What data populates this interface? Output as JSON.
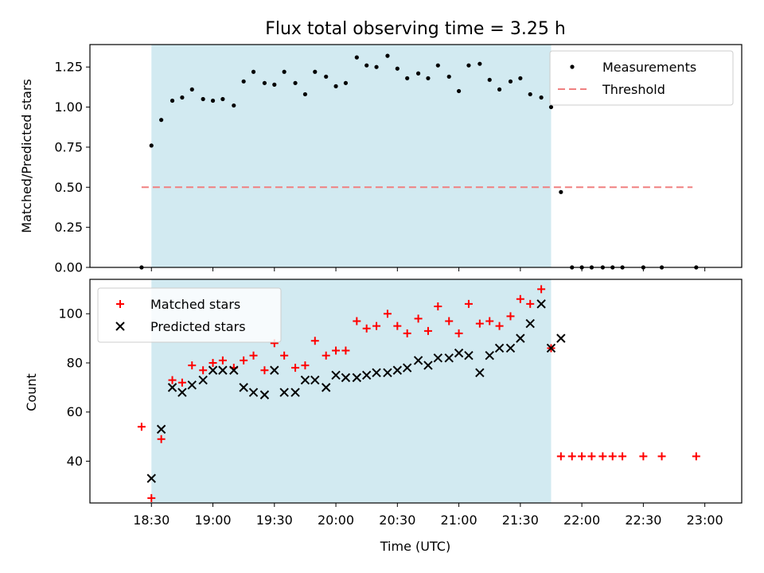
{
  "title": "Flux total observing time = 3.25 h",
  "x_ticks": [
    "18:30",
    "19:00",
    "19:30",
    "20:00",
    "20:30",
    "21:00",
    "21:30",
    "22:00",
    "22:30",
    "23:00"
  ],
  "colors": {
    "measurements": "#000000",
    "threshold": "#f08080",
    "matched": "#ff0000",
    "predicted": "#000000",
    "shade": "#add8e6"
  },
  "chart_data": [
    {
      "type": "scatter",
      "title": "Flux total observing time = 3.25 h",
      "xlabel": "",
      "ylabel": "Matched/Predicted stars",
      "x_unit": "time (UTC), decimal hours",
      "xlim": [
        18.0,
        23.3
      ],
      "ylim": [
        0.0,
        1.39
      ],
      "y_ticks": [
        "0.00",
        "0.25",
        "0.50",
        "0.75",
        "1.00",
        "1.25"
      ],
      "legend_position": "upper right",
      "grid": false,
      "shaded_x_range": [
        18.5,
        21.75
      ],
      "series": [
        {
          "name": "Measurements",
          "marker": "dot",
          "x": [
            18.42,
            18.5,
            18.58,
            18.67,
            18.75,
            18.83,
            18.92,
            19.0,
            19.08,
            19.17,
            19.25,
            19.33,
            19.42,
            19.5,
            19.58,
            19.67,
            19.75,
            19.83,
            19.92,
            20.0,
            20.08,
            20.17,
            20.25,
            20.33,
            20.42,
            20.5,
            20.58,
            20.67,
            20.75,
            20.83,
            20.92,
            21.0,
            21.08,
            21.17,
            21.25,
            21.33,
            21.42,
            21.5,
            21.58,
            21.67,
            21.75,
            21.83,
            21.92,
            22.0,
            22.08,
            22.17,
            22.25,
            22.33,
            22.5,
            22.65,
            22.93
          ],
          "y": [
            0.0,
            0.76,
            0.92,
            1.04,
            1.06,
            1.11,
            1.05,
            1.04,
            1.05,
            1.01,
            1.16,
            1.22,
            1.15,
            1.14,
            1.22,
            1.15,
            1.08,
            1.22,
            1.19,
            1.13,
            1.15,
            1.31,
            1.26,
            1.25,
            1.32,
            1.24,
            1.18,
            1.21,
            1.18,
            1.26,
            1.19,
            1.1,
            1.26,
            1.27,
            1.17,
            1.11,
            1.16,
            1.18,
            1.08,
            1.06,
            1.0,
            0.47,
            0.0,
            0.0,
            0.0,
            0.0,
            0.0,
            0.0,
            0.0,
            0.0,
            0.0
          ]
        },
        {
          "name": "Threshold",
          "marker": "dashed-line",
          "x": [
            18.42,
            22.9
          ],
          "y": [
            0.5,
            0.5
          ]
        }
      ]
    },
    {
      "type": "scatter",
      "xlabel": "Time (UTC)",
      "ylabel": "Count",
      "x_unit": "time (UTC), decimal hours",
      "xlim": [
        18.0,
        23.3
      ],
      "ylim": [
        23,
        114
      ],
      "y_ticks": [
        "40",
        "60",
        "80",
        "100"
      ],
      "legend_position": "upper left",
      "grid": false,
      "shaded_x_range": [
        18.5,
        21.75
      ],
      "series": [
        {
          "name": "Matched stars",
          "marker": "plus",
          "x": [
            18.42,
            18.5,
            18.58,
            18.67,
            18.75,
            18.83,
            18.92,
            19.0,
            19.08,
            19.17,
            19.25,
            19.33,
            19.42,
            19.5,
            19.58,
            19.67,
            19.75,
            19.83,
            19.92,
            20.0,
            20.08,
            20.17,
            20.25,
            20.33,
            20.42,
            20.5,
            20.58,
            20.67,
            20.75,
            20.83,
            20.92,
            21.0,
            21.08,
            21.17,
            21.25,
            21.33,
            21.42,
            21.5,
            21.58,
            21.67,
            21.75,
            21.83,
            21.92,
            22.0,
            22.08,
            22.17,
            22.25,
            22.33,
            22.5,
            22.65,
            22.93
          ],
          "y": [
            54,
            25,
            49,
            73,
            72,
            79,
            77,
            80,
            81,
            78,
            81,
            83,
            77,
            88,
            83,
            78,
            79,
            89,
            83,
            85,
            85,
            97,
            94,
            95,
            100,
            95,
            92,
            98,
            93,
            103,
            97,
            92,
            104,
            96,
            97,
            95,
            99,
            106,
            104,
            110,
            86,
            42,
            42,
            42,
            42,
            42,
            42,
            42,
            42,
            42,
            42
          ]
        },
        {
          "name": "Predicted stars",
          "marker": "x",
          "x": [
            18.5,
            18.58,
            18.67,
            18.75,
            18.83,
            18.92,
            19.0,
            19.08,
            19.17,
            19.25,
            19.33,
            19.42,
            19.5,
            19.58,
            19.67,
            19.75,
            19.83,
            19.92,
            20.0,
            20.08,
            20.17,
            20.25,
            20.33,
            20.42,
            20.5,
            20.58,
            20.67,
            20.75,
            20.83,
            20.92,
            21.0,
            21.08,
            21.17,
            21.25,
            21.33,
            21.42,
            21.5,
            21.58,
            21.67,
            21.75,
            21.83
          ],
          "y": [
            33,
            53,
            70,
            68,
            71,
            73,
            77,
            77,
            77,
            70,
            68,
            67,
            77,
            68,
            68,
            73,
            73,
            70,
            75,
            74,
            74,
            75,
            76,
            76,
            77,
            78,
            81,
            79,
            82,
            82,
            84,
            83,
            76,
            83,
            86,
            86,
            90,
            96,
            104,
            86,
            90
          ]
        }
      ]
    }
  ]
}
